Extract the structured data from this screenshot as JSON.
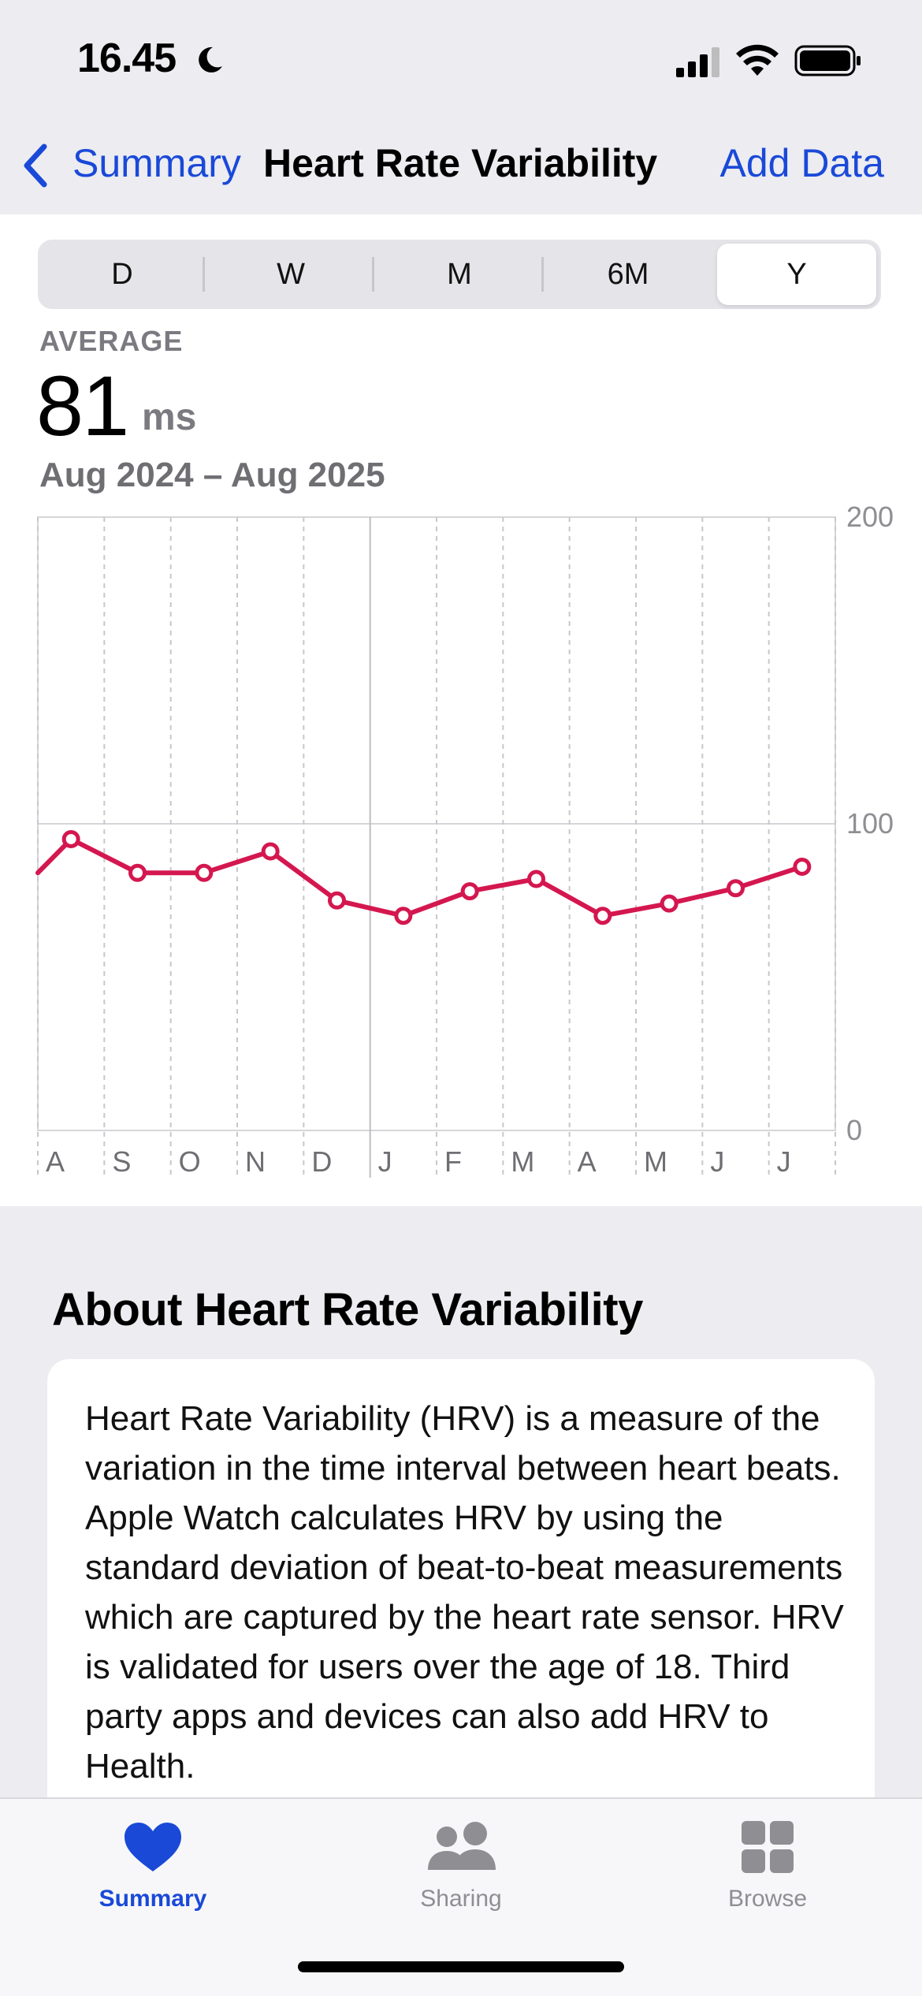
{
  "status": {
    "time": "16.45"
  },
  "nav": {
    "back_label": "Summary",
    "title": "Heart Rate Variability",
    "action_label": "Add Data"
  },
  "ranges": [
    "D",
    "W",
    "M",
    "6M",
    "Y"
  ],
  "selected_range": "Y",
  "summary": {
    "label": "AVERAGE",
    "value": "81",
    "unit": "ms",
    "date_range": "Aug 2024 – Aug 2025"
  },
  "colors": {
    "accent": "#1a49d8",
    "series": "#d4174f",
    "inactive": "#8e8e93"
  },
  "chart_data": {
    "type": "line",
    "categories": [
      "A",
      "S",
      "O",
      "N",
      "D",
      "J",
      "F",
      "M",
      "A",
      "M",
      "J",
      "J"
    ],
    "x_start_partial": 84,
    "values": [
      95,
      84,
      84,
      91,
      75,
      70,
      78,
      82,
      70,
      74,
      79,
      86
    ],
    "y_ticks": [
      "200",
      "100",
      "0"
    ],
    "ylim": [
      0,
      200
    ],
    "grid": true
  },
  "about": {
    "heading": "About Heart Rate Variability",
    "body": "Heart Rate Variability (HRV) is a measure of the variation in the time interval between heart beats. Apple Watch calculates HRV by using the standard deviation of beat-to-beat measurements which are captured by the heart rate sensor. HRV is validated for users over the age of 18. Third party apps and devices can also add HRV to Health."
  },
  "tabs": [
    {
      "label": "Summary",
      "icon": "heart-icon",
      "active": true
    },
    {
      "label": "Sharing",
      "icon": "people-icon",
      "active": false
    },
    {
      "label": "Browse",
      "icon": "grid-icon",
      "active": false
    }
  ]
}
